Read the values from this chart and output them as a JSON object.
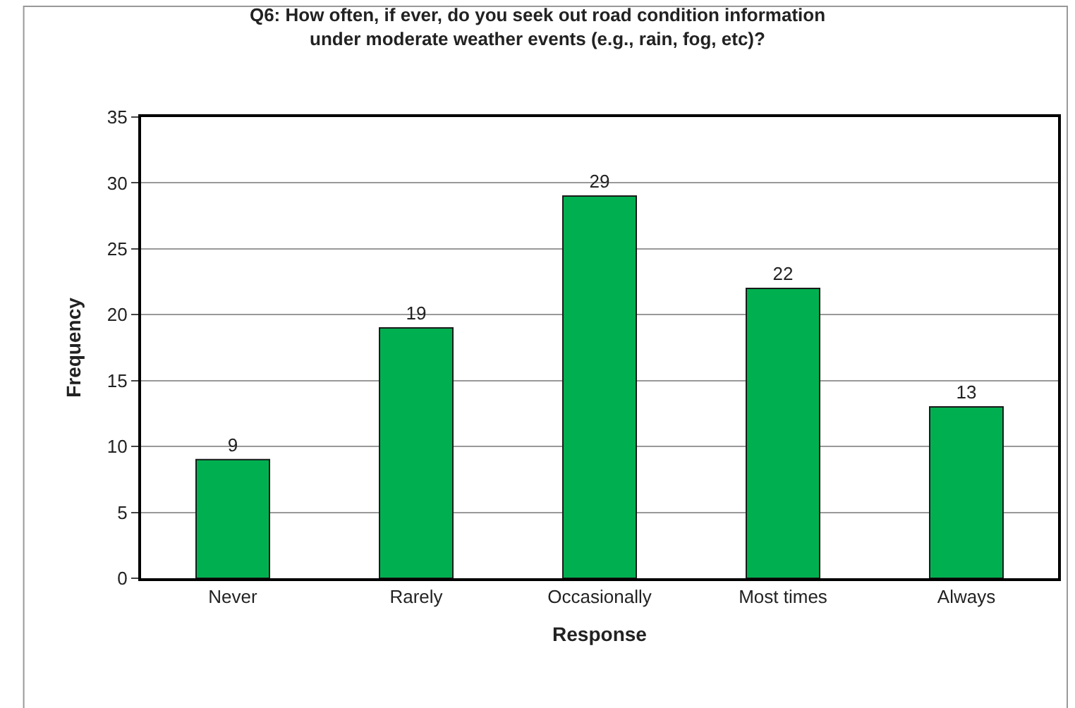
{
  "chart_data": {
    "type": "bar",
    "title": "Q6: How often, if ever, do you seek out road condition information\nunder moderate weather events (e.g., rain, fog, etc)?",
    "xlabel": "Response",
    "ylabel": "Frequency",
    "categories": [
      "Never",
      "Rarely",
      "Occasionally",
      "Most times",
      "Always"
    ],
    "values": [
      9,
      19,
      29,
      22,
      13
    ],
    "color": "#00b050",
    "ylim": [
      0,
      35
    ],
    "yticks": [
      0,
      5,
      10,
      15,
      20,
      25,
      30,
      35
    ],
    "grid": "y",
    "data_labels": true,
    "legend": false
  }
}
